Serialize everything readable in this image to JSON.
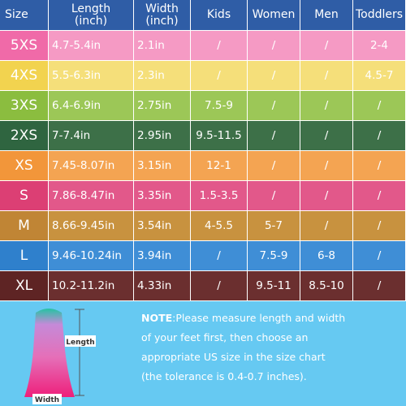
{
  "table": {
    "header": [
      [
        "Size"
      ],
      [
        "Length",
        "(inch)"
      ],
      [
        "Width",
        "(inch)"
      ],
      [
        "Kids"
      ],
      [
        "Women"
      ],
      [
        "Men"
      ],
      [
        "Toddlers"
      ]
    ],
    "rows": [
      [
        "5XS",
        "4.7-5.4in",
        "2.1in",
        "/",
        "/",
        "/",
        "2-4"
      ],
      [
        "4XS",
        "5.5-6.3in",
        "2.3in",
        "/",
        "/",
        "/",
        "4.5-7"
      ],
      [
        "3XS",
        "6.4-6.9in",
        "2.75in",
        "7.5-9",
        "/",
        "/",
        "/"
      ],
      [
        "2XS",
        "7-7.4in",
        "2.95in",
        "9.5-11.5",
        "/",
        "/",
        "/"
      ],
      [
        "XS",
        "7.45-8.07in",
        "3.15in",
        "12-1",
        "/",
        "/",
        "/"
      ],
      [
        "S",
        "7.86-8.47in",
        "3.35in",
        "1.5-3.5",
        "/",
        "/",
        "/"
      ],
      [
        "M",
        "8.66-9.45in",
        "3.54in",
        "4-5.5",
        "5-7",
        "/",
        "/"
      ],
      [
        "L",
        "9.46-10.24in",
        "3.94in",
        "/",
        "7.5-9",
        "6-8",
        "/"
      ],
      [
        "XL",
        "10.2-11.2in",
        "4.33in",
        "/",
        "9.5-11",
        "8.5-10",
        "/"
      ]
    ]
  },
  "note": {
    "label": "NOTE",
    "lines": [
      ":Please measure length and width",
      "of your feet first, then choose an",
      "appropriate US size in the size chart",
      "(the tolerance is 0.4-0.7 inches)."
    ]
  },
  "diagram": {
    "length": "Length",
    "width": "Width"
  }
}
